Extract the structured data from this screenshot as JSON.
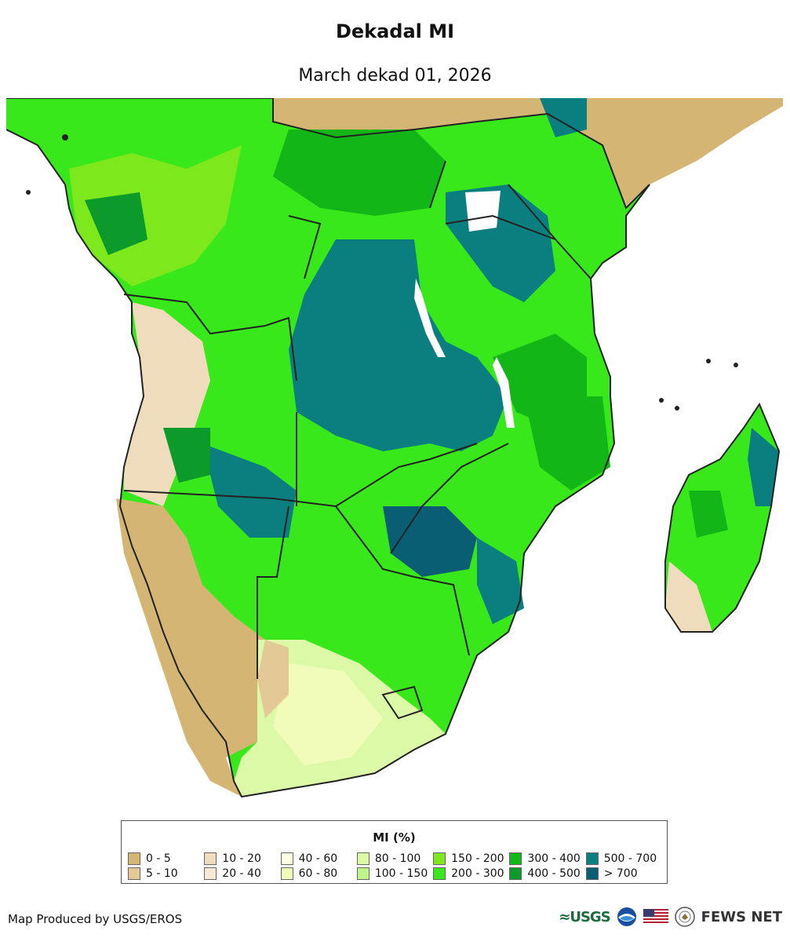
{
  "header": {
    "title": "Dekadal MI",
    "subtitle": "March dekad 01, 2026"
  },
  "legend": {
    "title": "MI (%)",
    "items": [
      {
        "label": "0 - 5",
        "color": "#d4b574"
      },
      {
        "label": "5 - 10",
        "color": "#e2c996"
      },
      {
        "label": "10 - 20",
        "color": "#efdcbc"
      },
      {
        "label": "20 - 40",
        "color": "#f6ead6"
      },
      {
        "label": "40 - 60",
        "color": "#fefee0"
      },
      {
        "label": "60 - 80",
        "color": "#f1fcb9"
      },
      {
        "label": "80 - 100",
        "color": "#dcf9a8"
      },
      {
        "label": "100 - 150",
        "color": "#bff58a"
      },
      {
        "label": "150 - 200",
        "color": "#7de81c"
      },
      {
        "label": "200 - 300",
        "color": "#39e81a"
      },
      {
        "label": "300 - 400",
        "color": "#12b717"
      },
      {
        "label": "400 - 500",
        "color": "#0c9a2a"
      },
      {
        "label": "500 - 700",
        "color": "#0b7f7f"
      },
      {
        "label": "> 700",
        "color": "#0a5e73"
      }
    ]
  },
  "footer": {
    "credit": "Map Produced by USGS/EROS",
    "usgs_logo": "≈USGS",
    "fews_logo": "FEWS NET",
    "logo_icons": [
      "noaa-logo-icon",
      "us-flag-icon",
      "state-department-seal-icon"
    ]
  }
}
